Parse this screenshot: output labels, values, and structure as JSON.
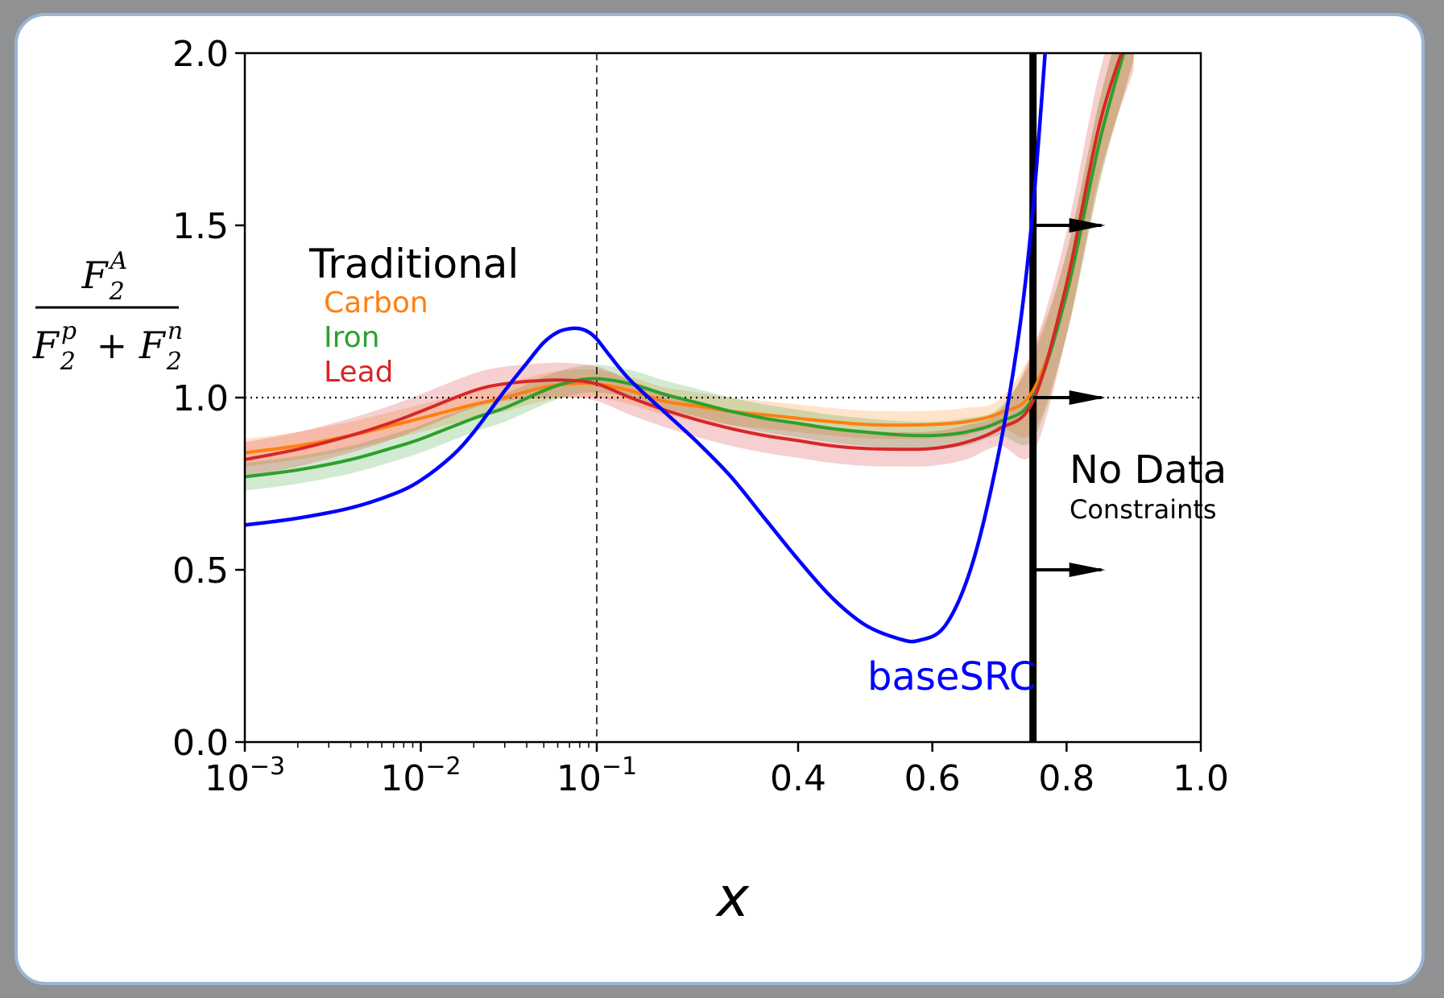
{
  "chart_data": {
    "type": "line",
    "xlabel": "x",
    "ylabel": {
      "numerator": "F_2^A",
      "denominator": "F_2^p + F_2^n"
    },
    "x_scale": "log below 0.1, linear above 0.1",
    "xlim": [
      0.001,
      1.0
    ],
    "ylim": [
      0.0,
      2.0
    ],
    "x_ticks": [
      {
        "value": 0.001,
        "label": "10^-3"
      },
      {
        "value": 0.01,
        "label": "10^-2"
      },
      {
        "value": 0.1,
        "label": "10^-1"
      },
      {
        "value": 0.4,
        "label": "0.4"
      },
      {
        "value": 0.6,
        "label": "0.6"
      },
      {
        "value": 0.8,
        "label": "0.8"
      },
      {
        "value": 1.0,
        "label": "1.0"
      }
    ],
    "y_ticks": [
      {
        "value": 0.0,
        "label": "0.0"
      },
      {
        "value": 0.5,
        "label": "0.5"
      },
      {
        "value": 1.0,
        "label": "1.0"
      },
      {
        "value": 1.5,
        "label": "1.5"
      },
      {
        "value": 2.0,
        "label": "2.0"
      }
    ],
    "reference_lines": [
      {
        "axis": "y",
        "value": 1.0,
        "style": "dotted"
      },
      {
        "axis": "x",
        "value": 0.1,
        "style": "dashed"
      },
      {
        "axis": "x",
        "value": 0.75,
        "style": "solid-thick"
      }
    ],
    "arrows_at_y": [
      1.5,
      1.0,
      0.5
    ],
    "legend": {
      "title": "Traditional",
      "placement": "upper-left",
      "entries": [
        {
          "label": "Carbon",
          "color": "#ff7f0e"
        },
        {
          "label": "Iron",
          "color": "#2ca02c"
        },
        {
          "label": "Lead",
          "color": "#d62728"
        }
      ]
    },
    "annotations": [
      {
        "text": "No Data",
        "subtext": "Constraints",
        "placement": "right of x=0.75 line"
      },
      {
        "text": "baseSRC",
        "color": "#0000ff",
        "placement": "below minimum of blue curve"
      }
    ],
    "series": [
      {
        "name": "Carbon",
        "color": "#ff7f0e",
        "band": true,
        "band_width": 0.04,
        "x": [
          0.001,
          0.002,
          0.004,
          0.007,
          0.01,
          0.02,
          0.03,
          0.05,
          0.07,
          0.1,
          0.15,
          0.2,
          0.25,
          0.3,
          0.35,
          0.4,
          0.45,
          0.5,
          0.55,
          0.6,
          0.65,
          0.7,
          0.75,
          0.8,
          0.85,
          0.9
        ],
        "y": [
          0.84,
          0.86,
          0.89,
          0.92,
          0.94,
          0.98,
          1.0,
          1.03,
          1.04,
          1.04,
          1.02,
          0.99,
          0.975,
          0.96,
          0.95,
          0.94,
          0.93,
          0.922,
          0.92,
          0.922,
          0.93,
          0.955,
          1.02,
          1.3,
          1.75,
          2.1
        ]
      },
      {
        "name": "Iron",
        "color": "#2ca02c",
        "band": true,
        "band_width": 0.04,
        "x": [
          0.001,
          0.002,
          0.004,
          0.007,
          0.01,
          0.02,
          0.03,
          0.05,
          0.07,
          0.1,
          0.15,
          0.2,
          0.25,
          0.3,
          0.35,
          0.4,
          0.45,
          0.5,
          0.55,
          0.6,
          0.65,
          0.7,
          0.75,
          0.8,
          0.85,
          0.9
        ],
        "y": [
          0.77,
          0.79,
          0.82,
          0.855,
          0.88,
          0.94,
          0.97,
          1.02,
          1.045,
          1.055,
          1.04,
          1.01,
          0.985,
          0.96,
          0.94,
          0.925,
          0.91,
          0.9,
          0.892,
          0.89,
          0.9,
          0.93,
          1.0,
          1.3,
          1.75,
          2.1
        ]
      },
      {
        "name": "Lead",
        "color": "#d62728",
        "band": true,
        "band_width": 0.05,
        "x": [
          0.001,
          0.002,
          0.004,
          0.007,
          0.01,
          0.02,
          0.03,
          0.05,
          0.07,
          0.1,
          0.15,
          0.2,
          0.25,
          0.3,
          0.35,
          0.4,
          0.45,
          0.5,
          0.55,
          0.6,
          0.65,
          0.7,
          0.75,
          0.8,
          0.85,
          0.9
        ],
        "y": [
          0.82,
          0.85,
          0.89,
          0.93,
          0.96,
          1.02,
          1.04,
          1.05,
          1.05,
          1.04,
          1.0,
          0.965,
          0.935,
          0.91,
          0.89,
          0.875,
          0.86,
          0.852,
          0.85,
          0.852,
          0.87,
          0.91,
          0.99,
          1.33,
          1.8,
          2.1
        ]
      },
      {
        "name": "baseSRC",
        "color": "#0000ff",
        "band": false,
        "x": [
          0.001,
          0.002,
          0.004,
          0.007,
          0.01,
          0.015,
          0.02,
          0.03,
          0.04,
          0.05,
          0.06,
          0.07,
          0.08,
          0.09,
          0.1,
          0.12,
          0.15,
          0.2,
          0.25,
          0.3,
          0.35,
          0.4,
          0.45,
          0.5,
          0.55,
          0.58,
          0.62,
          0.66,
          0.7,
          0.73,
          0.75,
          0.77
        ],
        "y": [
          0.63,
          0.65,
          0.68,
          0.72,
          0.76,
          0.83,
          0.9,
          1.02,
          1.1,
          1.16,
          1.19,
          1.2,
          1.2,
          1.19,
          1.17,
          1.12,
          1.05,
          0.96,
          0.87,
          0.77,
          0.65,
          0.53,
          0.42,
          0.34,
          0.3,
          0.295,
          0.34,
          0.52,
          0.85,
          1.2,
          1.55,
          2.05
        ]
      }
    ]
  }
}
